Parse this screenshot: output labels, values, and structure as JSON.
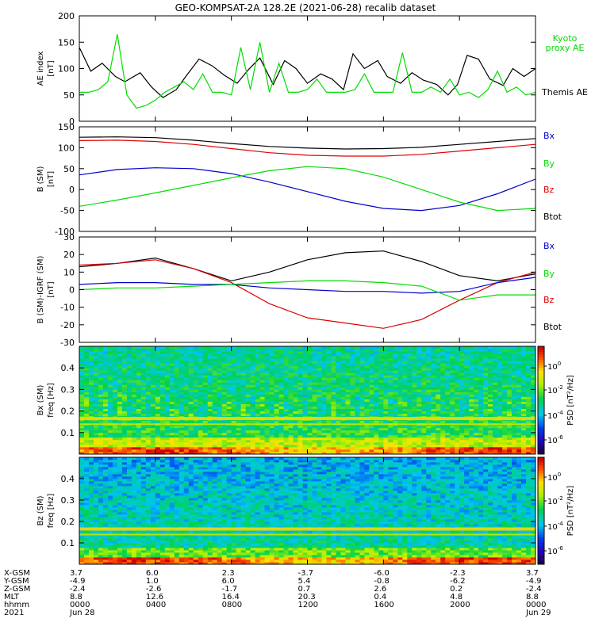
{
  "title": "GEO-KOMPSAT-2A 128.2E (2021-06-28) recalib dataset",
  "chart_data": [
    {
      "type": "line",
      "panel": "ae-index",
      "ylabel": [
        "AE index",
        "[nT]"
      ],
      "ylim": [
        0,
        200
      ],
      "yticks": [
        "0",
        "50",
        "100",
        "150",
        "200"
      ],
      "xlim": [
        0,
        24
      ],
      "legend": [
        {
          "name": "Kyoto proxy AE",
          "lines": [
            "Kyoto",
            "proxy AE"
          ],
          "color": "#00dd00"
        },
        {
          "name": "Themis AE",
          "lines": [
            "Themis AE"
          ],
          "color": "#000000"
        }
      ],
      "series": [
        {
          "name": "Themis AE",
          "color": "#000000",
          "x": [
            0,
            0.6,
            1.2,
            1.9,
            2.4,
            3.2,
            3.8,
            4.4,
            5.1,
            5.6,
            6.3,
            7.0,
            7.6,
            8.3,
            8.9,
            9.5,
            10.2,
            10.8,
            11.4,
            12.0,
            12.7,
            13.3,
            13.9,
            14.4,
            15.0,
            15.7,
            16.2,
            16.9,
            17.5,
            18.1,
            18.8,
            19.4,
            19.9,
            20.4,
            21.0,
            21.6,
            22.3,
            22.8,
            23.4,
            24.0
          ],
          "y": [
            140,
            95,
            110,
            85,
            75,
            92,
            65,
            45,
            60,
            85,
            118,
            105,
            88,
            72,
            98,
            120,
            70,
            115,
            100,
            72,
            90,
            80,
            60,
            128,
            100,
            115,
            85,
            72,
            92,
            78,
            70,
            50,
            70,
            125,
            118,
            80,
            68,
            100,
            85,
            100
          ]
        },
        {
          "name": "Kyoto proxy AE",
          "color": "#00dd00",
          "x": [
            0,
            0.5,
            1.0,
            1.5,
            2.0,
            2.5,
            3.0,
            3.5,
            4.0,
            4.5,
            5.0,
            5.5,
            6.0,
            6.5,
            7.0,
            7.5,
            8.0,
            8.5,
            9.0,
            9.5,
            10.0,
            10.5,
            11.0,
            11.5,
            12.0,
            12.5,
            13.0,
            13.5,
            14.0,
            14.5,
            15.0,
            15.5,
            16.0,
            16.5,
            17.0,
            17.5,
            18.0,
            18.5,
            19.0,
            19.5,
            20.0,
            20.5,
            21.0,
            21.5,
            22.0,
            22.5,
            23.0,
            23.5,
            24.0
          ],
          "y": [
            55,
            55,
            60,
            75,
            165,
            50,
            25,
            30,
            40,
            55,
            65,
            75,
            60,
            90,
            55,
            55,
            50,
            140,
            60,
            150,
            55,
            110,
            55,
            55,
            60,
            80,
            55,
            55,
            55,
            60,
            90,
            55,
            55,
            55,
            130,
            55,
            55,
            65,
            55,
            80,
            50,
            55,
            45,
            60,
            95,
            55,
            65,
            50,
            55
          ]
        }
      ]
    },
    {
      "type": "line",
      "panel": "b-sm",
      "ylabel": [
        "B (SM)",
        "[nT]"
      ],
      "ylim": [
        -100,
        150
      ],
      "yticks": [
        "-100",
        "-50",
        "0",
        "50",
        "100",
        "150"
      ],
      "xlim": [
        0,
        24
      ],
      "legend": [
        {
          "name": "Bx",
          "color": "#0000cc"
        },
        {
          "name": "By",
          "color": "#00dd00"
        },
        {
          "name": "Bz",
          "color": "#dd0000"
        },
        {
          "name": "Btot",
          "color": "#000000"
        }
      ],
      "series": [
        {
          "name": "Btot",
          "color": "#000000",
          "x": [
            0,
            2,
            4,
            6,
            8,
            10,
            12,
            14,
            16,
            18,
            20,
            22,
            24
          ],
          "y": [
            125,
            126,
            124,
            118,
            110,
            103,
            99,
            97,
            98,
            101,
            108,
            115,
            122
          ]
        },
        {
          "name": "Bz",
          "color": "#dd0000",
          "x": [
            0,
            2,
            4,
            6,
            8,
            10,
            12,
            14,
            16,
            18,
            20,
            22,
            24
          ],
          "y": [
            117,
            118,
            115,
            108,
            98,
            88,
            82,
            80,
            80,
            84,
            92,
            100,
            108
          ]
        },
        {
          "name": "Bx",
          "color": "#0000cc",
          "x": [
            0,
            2,
            4,
            6,
            8,
            10,
            12,
            14,
            16,
            18,
            20,
            22,
            24
          ],
          "y": [
            35,
            48,
            52,
            50,
            38,
            18,
            -5,
            -28,
            -45,
            -50,
            -38,
            -10,
            25
          ]
        },
        {
          "name": "By",
          "color": "#00dd00",
          "x": [
            0,
            2,
            4,
            6,
            8,
            10,
            12,
            14,
            16,
            18,
            20,
            22,
            24
          ],
          "y": [
            -40,
            -25,
            -8,
            10,
            28,
            45,
            55,
            50,
            30,
            0,
            -30,
            -50,
            -45
          ]
        }
      ]
    },
    {
      "type": "line",
      "panel": "b-minus-igrf",
      "ylabel": [
        "B (SM)-IGRF (SM)",
        "[nT]"
      ],
      "ylim": [
        -30,
        30
      ],
      "yticks": [
        "-30",
        "-20",
        "-10",
        "0",
        "10",
        "20",
        "30"
      ],
      "xlim": [
        0,
        24
      ],
      "legend": [
        {
          "name": "Bx",
          "color": "#0000cc"
        },
        {
          "name": "By",
          "color": "#00dd00"
        },
        {
          "name": "Bz",
          "color": "#dd0000"
        },
        {
          "name": "Btot",
          "color": "#000000"
        }
      ],
      "series": [
        {
          "name": "Btot",
          "color": "#000000",
          "x": [
            0,
            2,
            4,
            6,
            8,
            10,
            12,
            14,
            16,
            18,
            20,
            22,
            24
          ],
          "y": [
            13,
            15,
            18,
            12,
            5,
            10,
            17,
            21,
            22,
            16,
            8,
            5,
            9
          ]
        },
        {
          "name": "Bz",
          "color": "#dd0000",
          "x": [
            0,
            2,
            4,
            6,
            8,
            10,
            12,
            14,
            16,
            18,
            20,
            22,
            24
          ],
          "y": [
            14,
            15,
            17,
            12,
            4,
            -8,
            -16,
            -19,
            -22,
            -17,
            -6,
            4,
            10
          ]
        },
        {
          "name": "Bx",
          "color": "#0000cc",
          "x": [
            0,
            2,
            4,
            6,
            8,
            10,
            12,
            14,
            16,
            18,
            20,
            22,
            24
          ],
          "y": [
            3,
            4,
            4,
            3,
            3,
            1,
            0,
            -1,
            -1,
            -2,
            -1,
            4,
            7
          ]
        },
        {
          "name": "By",
          "color": "#00dd00",
          "x": [
            0,
            2,
            4,
            6,
            8,
            10,
            12,
            14,
            16,
            18,
            20,
            22,
            24
          ],
          "y": [
            0,
            1,
            1,
            2,
            3,
            4,
            5,
            5,
            4,
            2,
            -6,
            -3,
            -3
          ]
        }
      ]
    },
    {
      "type": "heatmap",
      "panel": "bx-spectrogram",
      "ylabel": [
        "Bx (SM)",
        "freq [Hz]"
      ],
      "ylim": [
        0,
        0.5
      ],
      "yticks": [
        "0.1",
        "0.2",
        "0.3",
        "0.4"
      ],
      "colorbar": {
        "label": "PSD [nT²/Hz]",
        "ticks": [
          "10^0",
          "10^-2",
          "10^-4",
          "10^-6"
        ]
      },
      "bands_hz": [
        0.165,
        0.135
      ]
    },
    {
      "type": "heatmap",
      "panel": "bz-spectrogram",
      "ylabel": [
        "Bz (SM)",
        "freq [Hz]"
      ],
      "ylim": [
        0,
        0.5
      ],
      "yticks": [
        "0.1",
        "0.2",
        "0.3",
        "0.4"
      ],
      "colorbar": {
        "label": "PSD [nT²/Hz]",
        "ticks": [
          "10^0",
          "10^-2",
          "10^-4",
          "10^-6"
        ]
      },
      "bands_hz": [
        0.165,
        0.135
      ]
    }
  ],
  "time_axis": {
    "row_labels": [
      "X-GSM",
      "Y-GSM",
      "Z-GSM",
      "MLT",
      "hhmm",
      "2021"
    ],
    "columns": [
      {
        "values": [
          "3.7",
          "-4.9",
          "-2.4",
          "8.8",
          "0000",
          "Jun 28"
        ]
      },
      {
        "values": [
          "6.0",
          "1.0",
          "-2.6",
          "12.6",
          "0400",
          ""
        ]
      },
      {
        "values": [
          "2.3",
          "6.0",
          "-1.7",
          "16.4",
          "0800",
          ""
        ]
      },
      {
        "values": [
          "-3.7",
          "5.4",
          "0.7",
          "20.3",
          "1200",
          ""
        ]
      },
      {
        "values": [
          "-6.0",
          "-0.8",
          "2.6",
          "0.4",
          "1600",
          ""
        ]
      },
      {
        "values": [
          "-2.3",
          "-6.2",
          "0.2",
          "4.8",
          "2000",
          ""
        ]
      },
      {
        "values": [
          "3.7",
          "-4.9",
          "-2.4",
          "8.8",
          "0000",
          "Jun 29"
        ]
      }
    ]
  }
}
